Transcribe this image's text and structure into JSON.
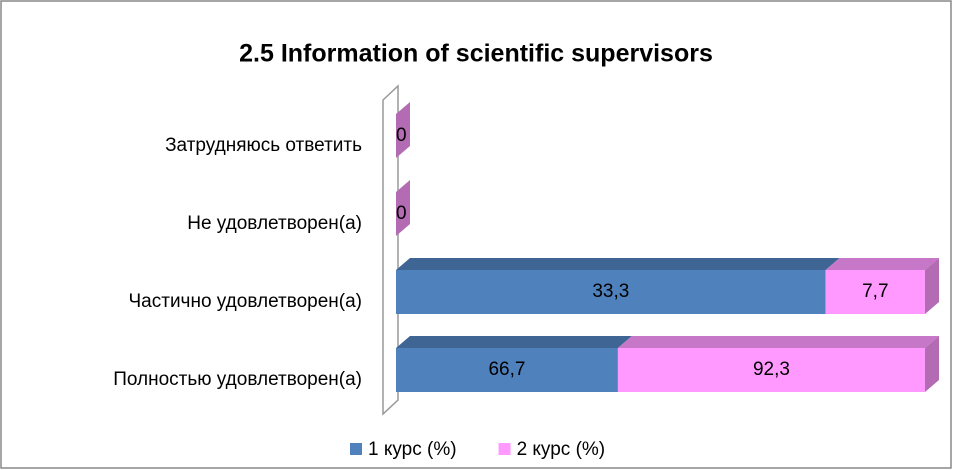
{
  "chart_data": {
    "type": "bar",
    "orientation": "horizontal",
    "stacking": "percent",
    "style": "3d",
    "title": "2.5 Information of scientific supervisors",
    "categories": [
      "Затрудняюсь ответить",
      "Не удовлетворен(а)",
      "Частично удовлетворен(а)",
      "Полностью удовлетворен(а)"
    ],
    "series": [
      {
        "name": "1 курс (%)",
        "color": "#4f81bd",
        "values": [
          0,
          0,
          33.3,
          66.7
        ],
        "value_labels": [
          "0",
          "0",
          "33,3",
          "66,7"
        ]
      },
      {
        "name": "2 курс (%)",
        "color": "#ff99ff",
        "values": [
          0,
          0,
          7.7,
          92.3
        ],
        "value_labels": [
          "0",
          "0",
          "7,7",
          "92,3"
        ]
      }
    ],
    "legend": "bottom"
  }
}
